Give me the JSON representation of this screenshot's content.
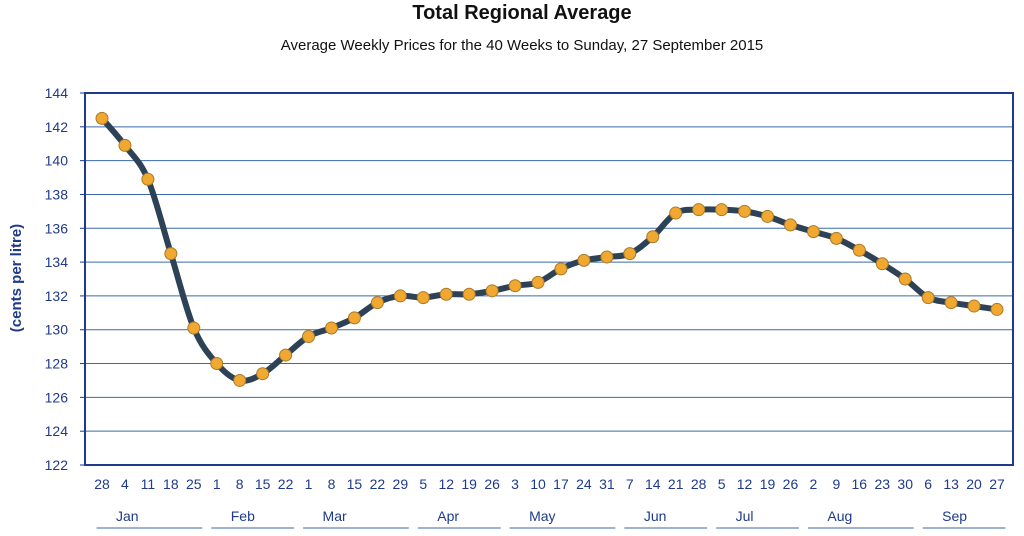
{
  "chart_data": {
    "type": "line",
    "title": "Total Regional Average",
    "subtitle": "Average Weekly Prices for the 40 Weeks to Sunday, 27 September 2015",
    "ylabel": "(cents per litre)",
    "xlabel": "",
    "ylim": [
      122,
      144
    ],
    "ytick_step": 2,
    "grid": true,
    "x_tick_labels": [
      "28",
      "4",
      "11",
      "18",
      "25",
      "1",
      "8",
      "15",
      "22",
      "1",
      "8",
      "15",
      "22",
      "29",
      "5",
      "12",
      "19",
      "26",
      "3",
      "10",
      "17",
      "24",
      "31",
      "7",
      "14",
      "21",
      "28",
      "5",
      "12",
      "19",
      "26",
      "2",
      "9",
      "16",
      "23",
      "30",
      "6",
      "13",
      "20",
      "27"
    ],
    "months": [
      {
        "label": "Jan",
        "start": 0,
        "end": 4
      },
      {
        "label": "Feb",
        "start": 5,
        "end": 8
      },
      {
        "label": "Mar",
        "start": 9,
        "end": 13
      },
      {
        "label": "Apr",
        "start": 14,
        "end": 17
      },
      {
        "label": "May",
        "start": 18,
        "end": 22
      },
      {
        "label": "Jun",
        "start": 23,
        "end": 26
      },
      {
        "label": "Jul",
        "start": 27,
        "end": 30
      },
      {
        "label": "Aug",
        "start": 31,
        "end": 35
      },
      {
        "label": "Sep",
        "start": 36,
        "end": 39
      }
    ],
    "series": [
      {
        "values": [
          142.5,
          140.9,
          138.9,
          134.5,
          130.1,
          128.0,
          127.0,
          127.4,
          128.5,
          129.6,
          130.1,
          130.7,
          131.6,
          132.0,
          131.9,
          132.1,
          132.1,
          132.3,
          132.6,
          132.8,
          133.6,
          134.1,
          134.3,
          134.5,
          135.5,
          136.9,
          137.1,
          137.1,
          137.0,
          136.7,
          136.2,
          135.8,
          135.4,
          134.7,
          133.9,
          133.0,
          131.9,
          131.6,
          131.4,
          131.2
        ]
      }
    ],
    "colors": {
      "line": "#2d4256",
      "marker_fill": "#f0a830",
      "marker_stroke": "#a87a2a",
      "grid": "#3a6aa8",
      "frame": "#1f3a8a",
      "text": "#1f3a8a"
    }
  }
}
